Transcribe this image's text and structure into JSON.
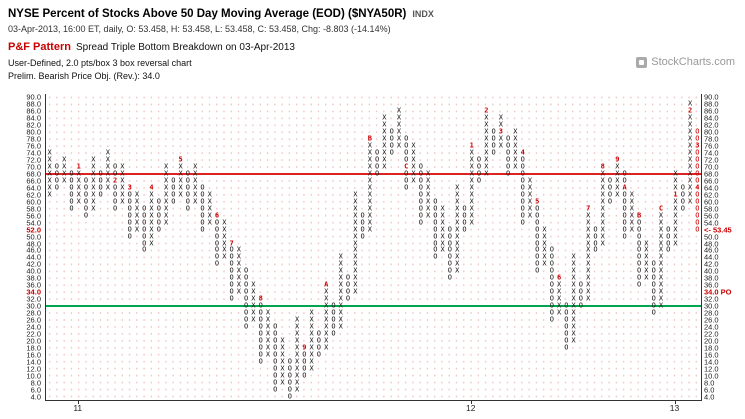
{
  "header": {
    "title": "NYSE Percent of Stocks Above 50 Day Moving Average (EOD) ($NYA50R)",
    "symbol_type": "INDX",
    "quote_line": "03-Apr-2013, 16:00 ET, daily, O: 53.458, H: 53.458, L: 53.458, C: 53.458, Chg: -8.803 (-14.14%)",
    "pattern_label": "P&F Pattern",
    "pattern_text": "Spread Triple Bottom Breakdown on 03-Apr-2013",
    "settings_line": "User-Defined, 2.0 pts/box 3 box reversal chart",
    "objective_line": "Prelim. Bearish Price Obj. (Rev.): 34.0",
    "watermark": "StockCharts.com"
  },
  "colors": {
    "pattern_red": "#cc0000",
    "resistance_line": "#dd2222",
    "support_line": "#00a550",
    "marker_red": "#cc0000"
  },
  "chart_data": {
    "type": "point-and-figure",
    "title": "NYSE Percent of Stocks Above 50 Day Moving Average (EOD) ($NYA50R)",
    "box_size": 2.0,
    "reversal": 3,
    "last_price": 53.458,
    "price_objective": 34.0,
    "ylim": [
      4.0,
      90.0
    ],
    "y_tick_step": 2.0,
    "grid": true,
    "highlighted_axis_levels": [
      52,
      34
    ],
    "resistance_line": {
      "level": 68,
      "color": "#dd2222"
    },
    "support_line": {
      "level": 30,
      "color": "#00a550"
    },
    "last_price_label": {
      "text": "<- 53.45",
      "level": 52,
      "color": "#cc0000"
    },
    "price_objective_label": {
      "text": "34.0 PO",
      "level": 34,
      "color": "#cc0000"
    },
    "x_year_labels": [
      {
        "label": "11",
        "col": 5
      },
      {
        "label": "12",
        "col": 59
      },
      {
        "label": "13",
        "col": 87
      }
    ],
    "columns": [
      [
        "X",
        62,
        74
      ],
      [
        "O",
        64,
        70
      ],
      [
        "X",
        66,
        72
      ],
      [
        "O",
        58,
        68
      ],
      [
        "X",
        60,
        70,
        {
          "70": "1"
        }
      ],
      [
        "O",
        56,
        66
      ],
      [
        "X",
        58,
        72
      ],
      [
        "O",
        62,
        68
      ],
      [
        "X",
        64,
        74
      ],
      [
        "O",
        58,
        70,
        {
          "66": "2"
        }
      ],
      [
        "X",
        60,
        70
      ],
      [
        "O",
        50,
        64,
        {
          "64": "3"
        }
      ],
      [
        "X",
        52,
        62
      ],
      [
        "O",
        46,
        58
      ],
      [
        "X",
        48,
        64,
        {
          "64": "4"
        }
      ],
      [
        "O",
        52,
        60
      ],
      [
        "X",
        54,
        70
      ],
      [
        "O",
        60,
        66
      ],
      [
        "X",
        62,
        72,
        {
          "72": "5"
        }
      ],
      [
        "O",
        58,
        68
      ],
      [
        "X",
        60,
        70
      ],
      [
        "O",
        52,
        64
      ],
      [
        "X",
        54,
        62
      ],
      [
        "O",
        42,
        56,
        {
          "56": "6"
        }
      ],
      [
        "X",
        44,
        54
      ],
      [
        "O",
        32,
        48,
        {
          "48": "7"
        }
      ],
      [
        "X",
        34,
        46
      ],
      [
        "O",
        24,
        40
      ],
      [
        "X",
        26,
        36
      ],
      [
        "O",
        14,
        32,
        {
          "32": "8"
        }
      ],
      [
        "X",
        16,
        28
      ],
      [
        "O",
        6,
        24
      ],
      [
        "X",
        8,
        20
      ],
      [
        "O",
        4,
        14
      ],
      [
        "X",
        6,
        26
      ],
      [
        "O",
        10,
        18,
        {
          "18": "9"
        }
      ],
      [
        "X",
        12,
        28
      ],
      [
        "O",
        16,
        22
      ],
      [
        "X",
        18,
        36,
        {
          "36": "A"
        }
      ],
      [
        "O",
        22,
        30
      ],
      [
        "X",
        24,
        44
      ],
      [
        "O",
        32,
        38
      ],
      [
        "X",
        34,
        62
      ],
      [
        "O",
        50,
        56
      ],
      [
        "X",
        52,
        78,
        {
          "78": "B"
        }
      ],
      [
        "O",
        68,
        74
      ],
      [
        "X",
        70,
        84
      ],
      [
        "O",
        74,
        80
      ],
      [
        "X",
        76,
        86
      ],
      [
        "O",
        64,
        78,
        {
          "70": "C"
        }
      ],
      [
        "X",
        66,
        76
      ],
      [
        "O",
        54,
        70
      ],
      [
        "X",
        56,
        68
      ],
      [
        "O",
        44,
        60
      ],
      [
        "X",
        46,
        58
      ],
      [
        "O",
        38,
        52
      ],
      [
        "X",
        40,
        64
      ],
      [
        "O",
        52,
        58
      ],
      [
        "X",
        54,
        76,
        {
          "76": "1"
        }
      ],
      [
        "O",
        66,
        72
      ],
      [
        "X",
        68,
        86,
        {
          "86": "2"
        }
      ],
      [
        "O",
        74,
        80
      ],
      [
        "X",
        76,
        84,
        {
          "80": "3"
        }
      ],
      [
        "O",
        68,
        78
      ],
      [
        "X",
        70,
        80
      ],
      [
        "O",
        54,
        74,
        {
          "74": "4"
        }
      ],
      [
        "X",
        56,
        66
      ],
      [
        "O",
        40,
        60,
        {
          "60": "5"
        }
      ],
      [
        "X",
        42,
        52
      ],
      [
        "O",
        26,
        46
      ],
      [
        "X",
        28,
        38,
        {
          "38": "6"
        }
      ],
      [
        "O",
        18,
        30
      ],
      [
        "X",
        20,
        44
      ],
      [
        "O",
        30,
        36
      ],
      [
        "X",
        32,
        58,
        {
          "58": "7"
        }
      ],
      [
        "O",
        46,
        52
      ],
      [
        "X",
        48,
        70,
        {
          "70": "8"
        }
      ],
      [
        "O",
        60,
        66
      ],
      [
        "X",
        62,
        72,
        {
          "72": "9"
        }
      ],
      [
        "O",
        50,
        68,
        {
          "64": "A"
        }
      ],
      [
        "X",
        52,
        62
      ],
      [
        "O",
        36,
        56,
        {
          "56": "B"
        }
      ],
      [
        "X",
        38,
        48
      ],
      [
        "O",
        28,
        42
      ],
      [
        "X",
        30,
        58,
        {
          "58": "C"
        }
      ],
      [
        "O",
        46,
        52
      ],
      [
        "X",
        48,
        68,
        {
          "62": "1"
        }
      ],
      [
        "O",
        58,
        64
      ],
      [
        "X",
        60,
        88,
        {
          "86": "2"
        }
      ],
      [
        "O",
        52,
        80,
        {
          "76": "3",
          "64": "4"
        },
        "red"
      ]
    ]
  }
}
